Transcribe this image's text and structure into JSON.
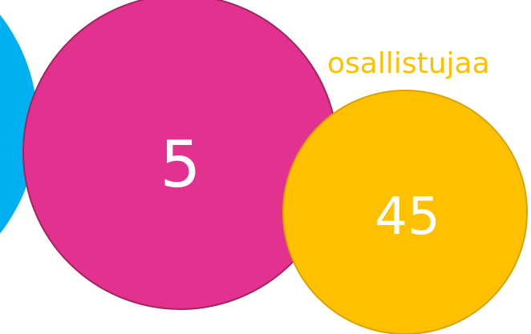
{
  "colors": {
    "blue": "#00b0f0",
    "magenta": "#e3318f",
    "magenta_stroke": "#a1255f",
    "yellow": "#ffc000",
    "yellow_stroke": "#d9a300",
    "white": "#ffffff"
  },
  "bubbles": {
    "magenta": {
      "value": "5"
    },
    "yellow": {
      "value": "45"
    }
  },
  "caption": {
    "text": "osallistujaa"
  }
}
